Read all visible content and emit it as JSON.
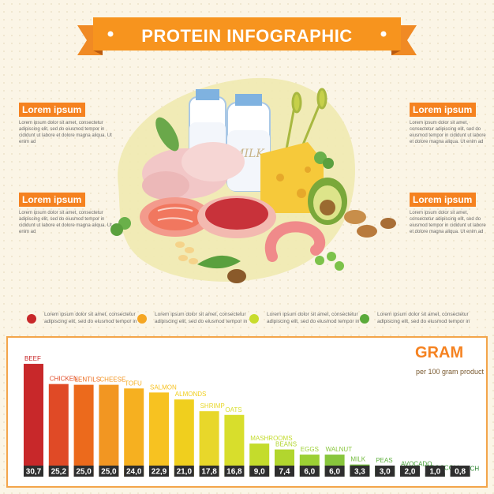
{
  "header": {
    "title": "PROTEIN INFOGRAPHIC"
  },
  "callouts": [
    {
      "heading": "Lorem ipsum",
      "body": "Lorem ipsum dolor sit amet, consectetur adipiscing elit, sed do eiusmod tempor in cididunt ut labore et dolore magna aliqua. Ut enim ad"
    },
    {
      "heading": "Lorem ipsum",
      "body": "Lorem ipsum dolor sit amet, consectetur adipiscing elit, sed do eiusmod tempor in cididunt ut labore et dolore magna aliqua. Ut enim ad"
    },
    {
      "heading": "Lorem ipsum",
      "body": "Lorem ipsum dolor sit amet, consectetur adipiscing elit, sed do eiusmod tempor in cididunt ut labore et dolore magna aliqua. Ut enim ad"
    },
    {
      "heading": "Lorem ipsum",
      "body": "Lorem ipsum dolor sit amet, consectetur adipiscing elit, sed do eiusmod tempor in cididunt ut labore et dolore magna aliqua. Ut enim ad"
    }
  ],
  "illustration": {
    "milk_label": "MILK"
  },
  "legend": [
    {
      "color": "#c8282a",
      "text": "Lorem ipsum dolor sit amet, consectetur adipiscing elit, sed do eiusmod tempor in"
    },
    {
      "color": "#f5a623",
      "text": "Lorem ipsum dolor sit amet, consectetur adipiscing elit, sed do eiusmod tempor in"
    },
    {
      "color": "#c8dc2c",
      "text": "Lorem ipsum dolor sit amet, consectetur adipiscing elit, sed do eiusmod tempor in"
    },
    {
      "color": "#5aaa3a",
      "text": "Lorem ipsum dolor sit amet, consectetur adipiscing elit, sed do eiusmod tempor in"
    }
  ],
  "chart_title": "GRAM",
  "chart_subtitle": "per 100 gram product",
  "chart_data": {
    "type": "bar",
    "categories": [
      "BEEF",
      "CHICKEN",
      "LENTILS",
      "CHEESE",
      "TOFU",
      "SALMON",
      "ALMONDS",
      "SHRIMP",
      "OATS",
      "MASHROOMS",
      "BEANS",
      "EGGS",
      "WALNUT",
      "MILK",
      "PEAS",
      "AVOCADO",
      "BROCCOLI",
      "SPINACH"
    ],
    "values": [
      30.7,
      25.2,
      25.0,
      25.0,
      24.0,
      22.9,
      21.0,
      17.8,
      16.8,
      9.0,
      7.4,
      6.0,
      6.0,
      3.3,
      3.0,
      2.0,
      1.0,
      0.8
    ],
    "value_labels": [
      "30,7",
      "25,2",
      "25,0",
      "25,0",
      "24,0",
      "22,9",
      "21,0",
      "17,8",
      "16,8",
      "9,0",
      "7,4",
      "6,0",
      "6,0",
      "3,3",
      "3,0",
      "2,0",
      "1,0",
      "0,8"
    ],
    "colors": [
      "#c8282a",
      "#e04a26",
      "#ec6a1c",
      "#f29622",
      "#f6b020",
      "#f7c221",
      "#f0cf1e",
      "#e8d72a",
      "#d8de2c",
      "#c4dc2c",
      "#b2d62e",
      "#9cd034",
      "#88c63c",
      "#74bc3e",
      "#5eb03e",
      "#4aa23c",
      "#389434",
      "#2a842e"
    ],
    "ylim": [
      0,
      32
    ],
    "grid": false,
    "legend": "none"
  }
}
